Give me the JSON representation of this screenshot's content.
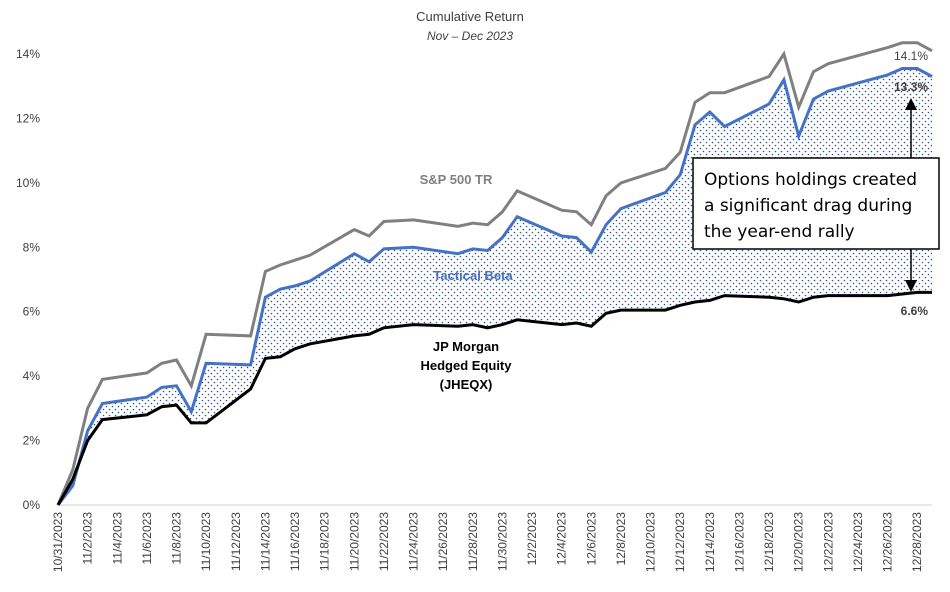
{
  "chart_data": {
    "type": "line",
    "title": "Cumulative Return",
    "subtitle": "Nov – Dec 2023",
    "xlabel": "",
    "ylabel": "",
    "ylim": [
      0,
      14
    ],
    "y_ticks": [
      "0%",
      "2%",
      "4%",
      "6%",
      "8%",
      "10%",
      "12%",
      "14%"
    ],
    "x_tick_labels": [
      "10/31/2023",
      "11/2/2023",
      "11/4/2023",
      "11/6/2023",
      "11/8/2023",
      "11/10/2023",
      "11/12/2023",
      "11/14/2023",
      "11/16/2023",
      "11/18/2023",
      "11/20/2023",
      "11/22/2023",
      "11/24/2023",
      "11/26/2023",
      "11/28/2023",
      "11/30/2023",
      "12/2/2023",
      "12/4/2023",
      "12/6/2023",
      "12/8/2023",
      "12/10/2023",
      "12/12/2023",
      "12/14/2023",
      "12/16/2023",
      "12/18/2023",
      "12/20/2023",
      "12/22/2023",
      "12/24/2023",
      "12/26/2023",
      "12/28/2023"
    ],
    "x": [
      "10/31/2023",
      "11/1/2023",
      "11/2/2023",
      "11/3/2023",
      "11/6/2023",
      "11/7/2023",
      "11/8/2023",
      "11/9/2023",
      "11/10/2023",
      "11/13/2023",
      "11/14/2023",
      "11/15/2023",
      "11/16/2023",
      "11/17/2023",
      "11/20/2023",
      "11/21/2023",
      "11/22/2023",
      "11/24/2023",
      "11/27/2023",
      "11/28/2023",
      "11/29/2023",
      "11/30/2023",
      "12/1/2023",
      "12/4/2023",
      "12/5/2023",
      "12/6/2023",
      "12/7/2023",
      "12/8/2023",
      "12/11/2023",
      "12/12/2023",
      "12/13/2023",
      "12/14/2023",
      "12/15/2023",
      "12/18/2023",
      "12/19/2023",
      "12/20/2023",
      "12/21/2023",
      "12/22/2023",
      "12/26/2023",
      "12/27/2023",
      "12/28/2023",
      "12/29/2023"
    ],
    "series": [
      {
        "name": "S&P 500 TR",
        "color": "#808080",
        "values": [
          0,
          1.1,
          3.0,
          3.9,
          4.1,
          4.4,
          4.5,
          3.7,
          5.3,
          5.25,
          7.25,
          7.45,
          7.6,
          7.75,
          8.55,
          8.35,
          8.8,
          8.85,
          8.65,
          8.75,
          8.7,
          9.1,
          9.75,
          9.15,
          9.1,
          8.7,
          9.6,
          10.0,
          10.45,
          10.95,
          12.5,
          12.8,
          12.8,
          13.3,
          14.0,
          12.35,
          13.45,
          13.7,
          14.2,
          14.35,
          14.35,
          14.1
        ]
      },
      {
        "name": "Tactical Beta",
        "color": "#4472C4",
        "values": [
          0,
          0.6,
          2.3,
          3.15,
          3.35,
          3.65,
          3.7,
          2.9,
          4.4,
          4.35,
          6.45,
          6.7,
          6.8,
          6.95,
          7.8,
          7.55,
          7.95,
          8.0,
          7.8,
          7.95,
          7.9,
          8.3,
          8.95,
          8.35,
          8.3,
          7.85,
          8.7,
          9.2,
          9.7,
          10.25,
          11.8,
          12.2,
          11.75,
          12.45,
          13.2,
          11.45,
          12.6,
          12.85,
          13.35,
          13.55,
          13.55,
          13.3
        ]
      },
      {
        "name": "JP Morgan Hedged Equity (JHEQX)",
        "color": "#000000",
        "values": [
          0,
          0.8,
          2.0,
          2.65,
          2.8,
          3.05,
          3.1,
          2.55,
          2.55,
          3.6,
          4.55,
          4.6,
          4.85,
          5.0,
          5.25,
          5.3,
          5.5,
          5.6,
          5.55,
          5.6,
          5.5,
          5.6,
          5.75,
          5.6,
          5.65,
          5.55,
          5.95,
          6.05,
          6.05,
          6.2,
          6.3,
          6.35,
          6.5,
          6.45,
          6.4,
          6.3,
          6.45,
          6.5,
          6.5,
          6.55,
          6.6,
          6.6
        ]
      }
    ],
    "series_labels": {
      "sp500": "S&P 500 TR",
      "tactical": "Tactical Beta",
      "jpm_line1": "JP Morgan",
      "jpm_line2": "Hedged Equity",
      "jpm_line3": "(JHEQX)"
    },
    "end_labels": {
      "sp500": "14.1%",
      "tactical": "13.3%",
      "jpm": "6.6%"
    },
    "annotation": {
      "line1": "Options holdings created",
      "line2": "a significant drag during",
      "line3": "the year-end rally"
    },
    "shading": "dotted area between Tactical Beta and JP Morgan Hedged Equity",
    "grid": false,
    "legend": "none (direct labels)"
  }
}
